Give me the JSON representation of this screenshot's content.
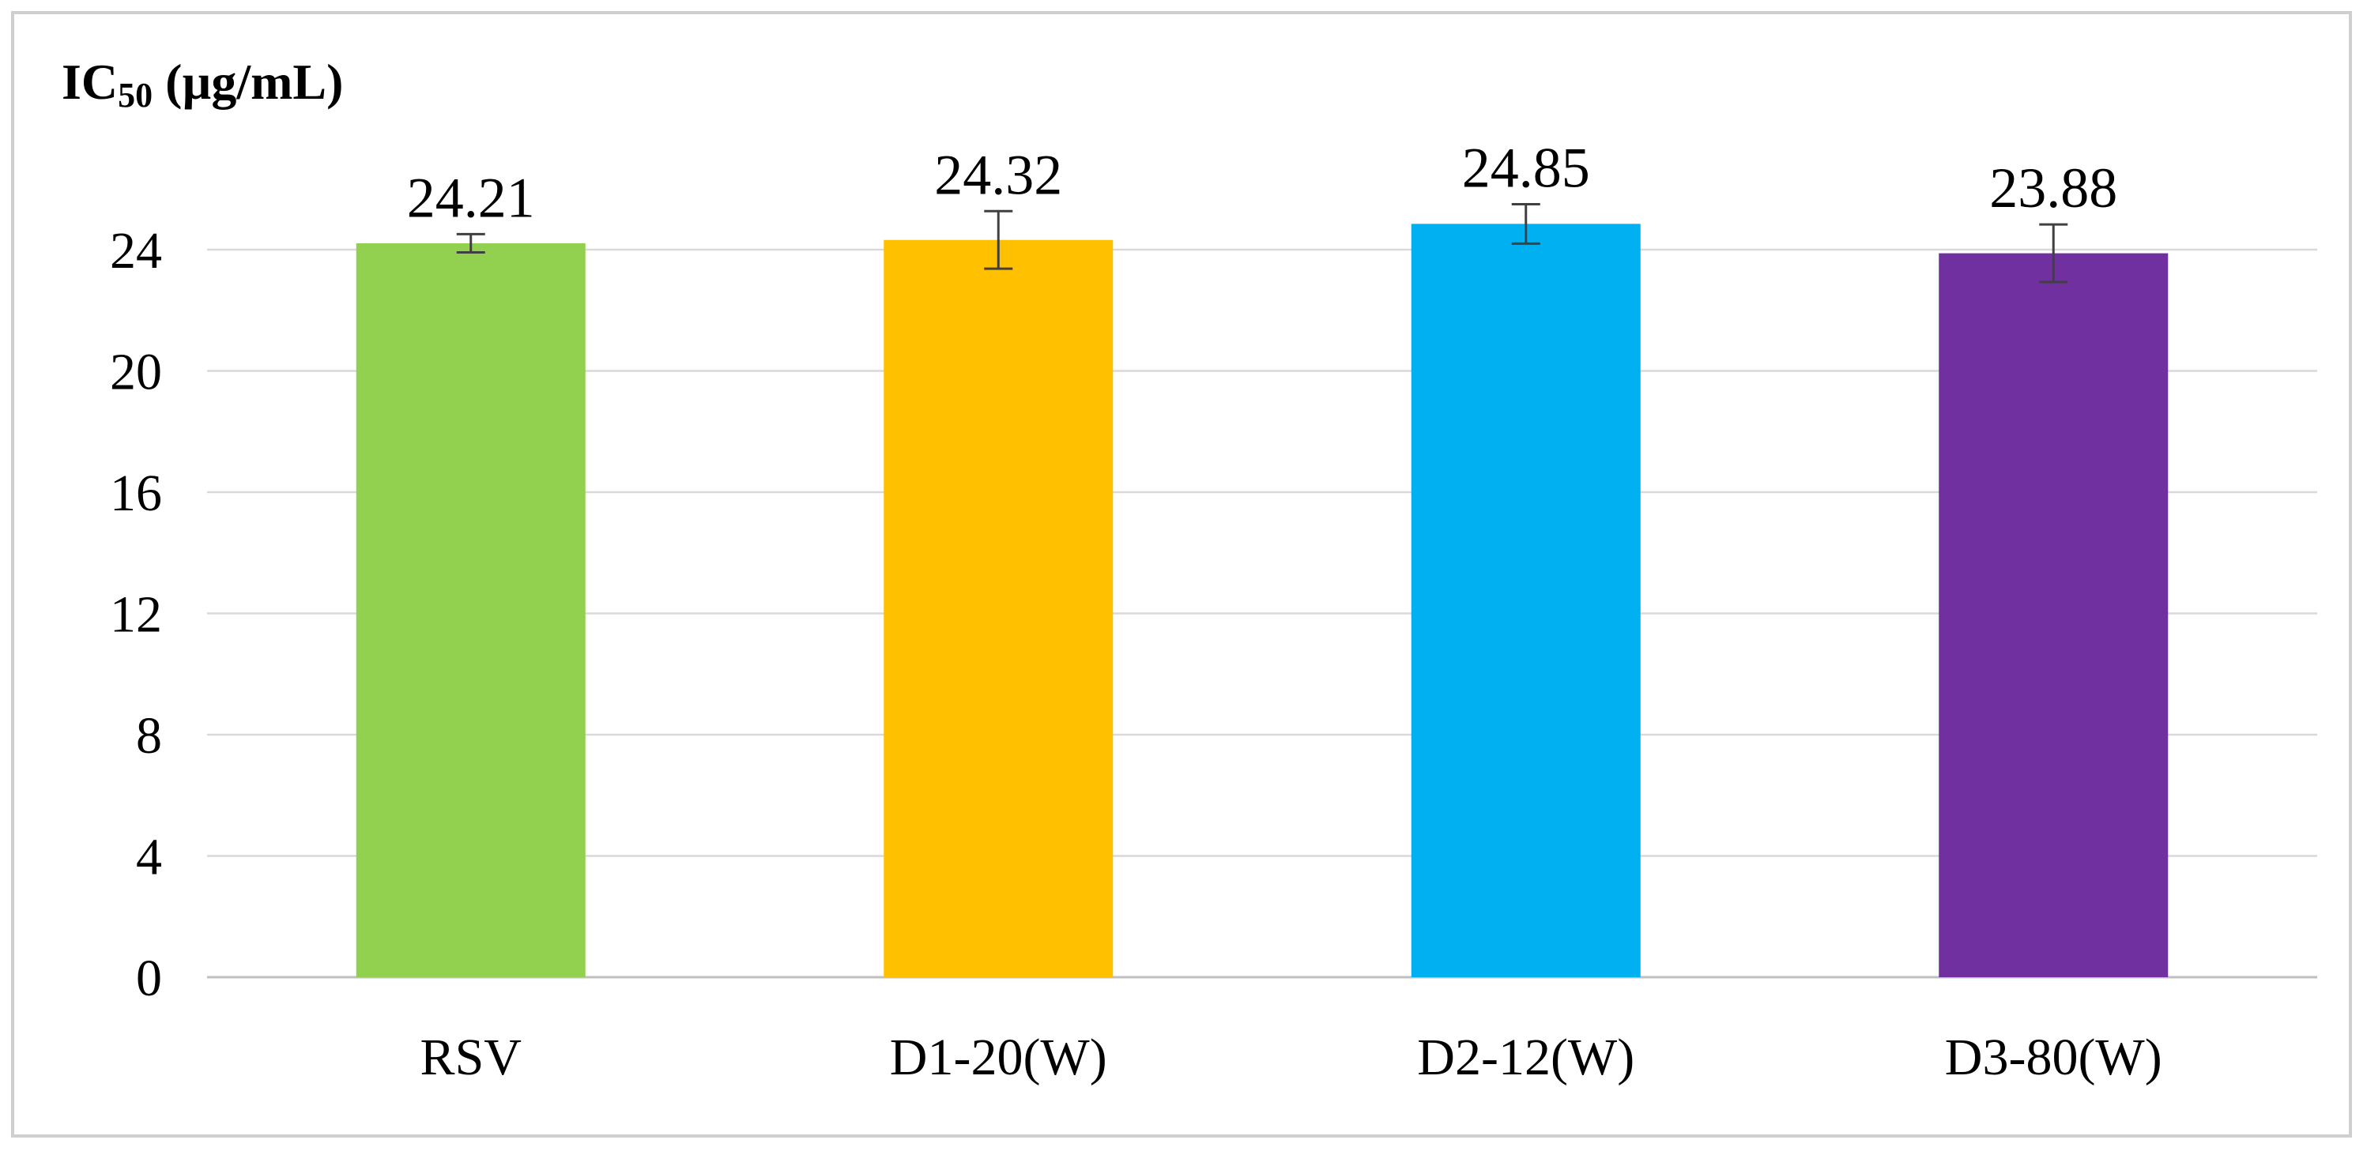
{
  "chart_data": {
    "type": "bar",
    "ylabel": {
      "prefix": "IC",
      "subscript": "50",
      "suffix": " (µg/mL)"
    },
    "categories": [
      "RSV",
      "D1-20(W)",
      "D2-12(W)",
      "D3-80(W)"
    ],
    "values": [
      24.21,
      24.32,
      24.85,
      23.88
    ],
    "data_labels": [
      "24.21",
      "24.32",
      "24.85",
      "23.88"
    ],
    "errors": [
      0.3,
      0.95,
      0.65,
      0.95
    ],
    "colors": [
      "#92d050",
      "#ffc000",
      "#00b0f0",
      "#7030a0"
    ],
    "ylim": [
      0,
      24
    ],
    "yticks": [
      0,
      4,
      8,
      12,
      16,
      20,
      24
    ],
    "grid": true,
    "legend": "none"
  }
}
